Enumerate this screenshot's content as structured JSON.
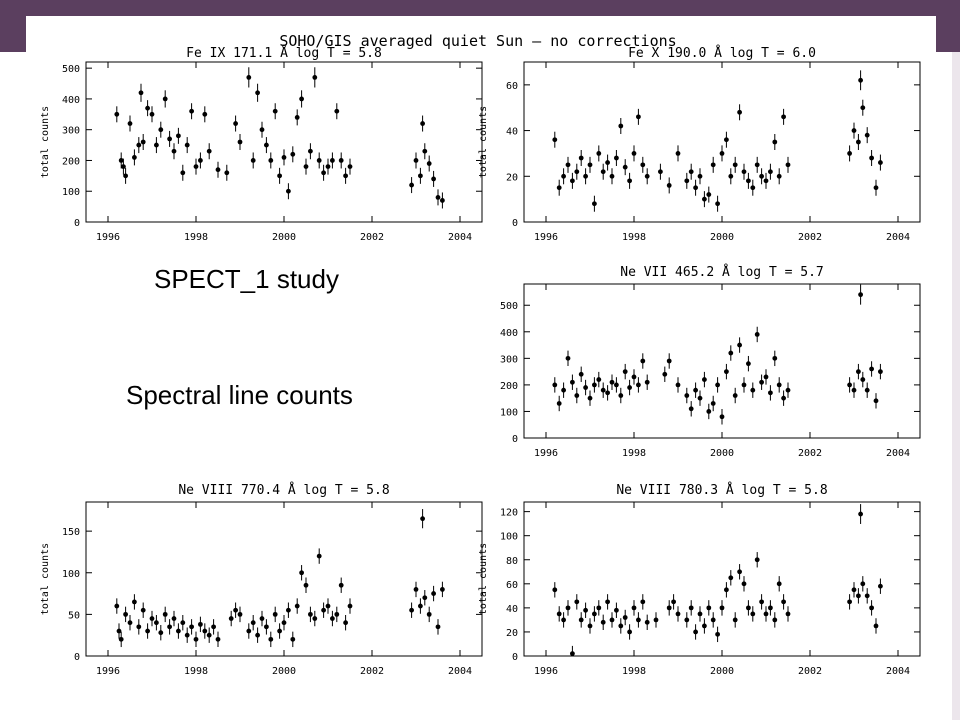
{
  "slide": {
    "header_color": "#5b3f5f",
    "main_title": "SOHO/GIS averaged quiet Sun – no corrections",
    "caption_study": "SPECT_1 study",
    "caption_counts": "Spectral line counts"
  },
  "chart_data": [
    {
      "type": "scatter",
      "title": "Fe IX 171.1 Å log T = 5.8",
      "ylabel": "total counts",
      "xlabel": "",
      "xlim": [
        1995.5,
        2004.5
      ],
      "ylim": [
        0,
        520
      ],
      "xticks": [
        1996,
        1998,
        2000,
        2002,
        2004
      ],
      "yticks": [
        0,
        100,
        200,
        300,
        400,
        500
      ],
      "error_bars": true,
      "x": [
        1996.2,
        1996.3,
        1996.35,
        1996.4,
        1996.5,
        1996.6,
        1996.7,
        1996.75,
        1996.8,
        1996.9,
        1997.0,
        1997.1,
        1997.2,
        1997.3,
        1997.4,
        1997.5,
        1997.6,
        1997.7,
        1997.8,
        1997.9,
        1998.0,
        1998.1,
        1998.2,
        1998.3,
        1998.5,
        1998.7,
        1998.9,
        1999.0,
        1999.2,
        1999.3,
        1999.4,
        1999.5,
        1999.6,
        1999.7,
        1999.8,
        1999.9,
        2000.0,
        2000.1,
        2000.2,
        2000.3,
        2000.4,
        2000.5,
        2000.6,
        2000.7,
        2000.8,
        2000.9,
        2001.0,
        2001.1,
        2001.2,
        2001.3,
        2001.4,
        2001.5,
        2002.9,
        2003.0,
        2003.1,
        2003.15,
        2003.2,
        2003.3,
        2003.4,
        2003.5,
        2003.6
      ],
      "y": [
        350,
        200,
        180,
        150,
        320,
        210,
        250,
        420,
        260,
        370,
        350,
        250,
        300,
        400,
        270,
        230,
        280,
        160,
        250,
        360,
        180,
        200,
        350,
        230,
        170,
        160,
        320,
        260,
        470,
        200,
        420,
        300,
        250,
        200,
        360,
        150,
        210,
        100,
        220,
        340,
        400,
        180,
        230,
        470,
        200,
        160,
        180,
        200,
        360,
        200,
        150,
        180,
        120,
        200,
        150,
        320,
        230,
        190,
        140,
        80,
        70
      ]
    },
    {
      "type": "scatter",
      "title": "Fe X 190.0 Å log T = 6.0",
      "ylabel": "total counts",
      "xlabel": "",
      "xlim": [
        1995.5,
        2004.5
      ],
      "ylim": [
        0,
        70
      ],
      "xticks": [
        1996,
        1998,
        2000,
        2002,
        2004
      ],
      "yticks": [
        0,
        20,
        40,
        60
      ],
      "error_bars": true,
      "x": [
        1996.2,
        1996.3,
        1996.4,
        1996.5,
        1996.6,
        1996.7,
        1996.8,
        1996.9,
        1997.0,
        1997.1,
        1997.2,
        1997.3,
        1997.4,
        1997.5,
        1997.6,
        1997.7,
        1997.8,
        1997.9,
        1998.0,
        1998.1,
        1998.2,
        1998.3,
        1998.6,
        1998.8,
        1999.0,
        1999.2,
        1999.3,
        1999.4,
        1999.5,
        1999.6,
        1999.7,
        1999.8,
        1999.9,
        2000.0,
        2000.1,
        2000.2,
        2000.3,
        2000.4,
        2000.5,
        2000.6,
        2000.7,
        2000.8,
        2000.9,
        2001.0,
        2001.1,
        2001.2,
        2001.3,
        2001.4,
        2001.5,
        2002.9,
        2003.0,
        2003.1,
        2003.15,
        2003.2,
        2003.3,
        2003.4,
        2003.5,
        2003.6
      ],
      "y": [
        36,
        15,
        20,
        25,
        18,
        22,
        28,
        20,
        25,
        8,
        30,
        22,
        26,
        20,
        28,
        42,
        24,
        18,
        30,
        46,
        25,
        20,
        22,
        16,
        30,
        18,
        22,
        15,
        20,
        10,
        12,
        25,
        8,
        30,
        36,
        20,
        25,
        48,
        22,
        18,
        15,
        25,
        20,
        18,
        22,
        35,
        20,
        46,
        25,
        30,
        40,
        35,
        62,
        50,
        38,
        28,
        15,
        26
      ]
    },
    {
      "type": "scatter",
      "title": "Ne VII 465.2 Å log T = 5.7",
      "ylabel": "",
      "xlabel": "",
      "xlim": [
        1995.5,
        2004.5
      ],
      "ylim": [
        0,
        580
      ],
      "xticks": [
        1996,
        1998,
        2000,
        2002,
        2004
      ],
      "yticks": [
        0,
        100,
        200,
        300,
        400,
        500
      ],
      "error_bars": true,
      "x": [
        1996.2,
        1996.3,
        1996.4,
        1996.5,
        1996.6,
        1996.7,
        1996.8,
        1996.9,
        1997.0,
        1997.1,
        1997.2,
        1997.3,
        1997.4,
        1997.5,
        1997.6,
        1997.7,
        1997.8,
        1997.9,
        1998.0,
        1998.1,
        1998.2,
        1998.3,
        1998.7,
        1998.8,
        1999.0,
        1999.2,
        1999.3,
        1999.4,
        1999.5,
        1999.6,
        1999.7,
        1999.8,
        1999.9,
        2000.0,
        2000.1,
        2000.2,
        2000.3,
        2000.4,
        2000.5,
        2000.6,
        2000.7,
        2000.8,
        2000.9,
        2001.0,
        2001.1,
        2001.2,
        2001.3,
        2001.4,
        2001.5,
        2002.9,
        2003.0,
        2003.1,
        2003.15,
        2003.2,
        2003.3,
        2003.4,
        2003.5,
        2003.6
      ],
      "y": [
        200,
        130,
        180,
        300,
        210,
        160,
        240,
        190,
        150,
        200,
        220,
        180,
        170,
        210,
        200,
        160,
        250,
        190,
        230,
        200,
        290,
        210,
        240,
        290,
        200,
        160,
        110,
        180,
        150,
        220,
        100,
        130,
        200,
        80,
        250,
        320,
        160,
        350,
        200,
        280,
        180,
        390,
        210,
        230,
        170,
        300,
        200,
        150,
        180,
        200,
        180,
        250,
        540,
        220,
        180,
        260,
        140,
        250
      ]
    },
    {
      "type": "scatter",
      "title": "Ne VIII 770.4 Å log T = 5.8",
      "ylabel": "total counts",
      "xlabel": "",
      "xlim": [
        1995.5,
        2004.5
      ],
      "ylim": [
        0,
        185
      ],
      "xticks": [
        1996,
        1998,
        2000,
        2002,
        2004
      ],
      "yticks": [
        0,
        50,
        100,
        150
      ],
      "error_bars": true,
      "x": [
        1996.2,
        1996.25,
        1996.3,
        1996.4,
        1996.5,
        1996.6,
        1996.7,
        1996.8,
        1996.9,
        1997.0,
        1997.1,
        1997.2,
        1997.3,
        1997.4,
        1997.5,
        1997.6,
        1997.7,
        1997.8,
        1997.9,
        1998.0,
        1998.1,
        1998.2,
        1998.3,
        1998.4,
        1998.5,
        1998.8,
        1998.9,
        1999.0,
        1999.2,
        1999.3,
        1999.4,
        1999.5,
        1999.6,
        1999.7,
        1999.8,
        1999.9,
        2000.0,
        2000.1,
        2000.2,
        2000.3,
        2000.4,
        2000.5,
        2000.6,
        2000.7,
        2000.8,
        2000.9,
        2001.0,
        2001.1,
        2001.2,
        2001.3,
        2001.4,
        2001.5,
        2002.9,
        2003.0,
        2003.1,
        2003.15,
        2003.2,
        2003.3,
        2003.4,
        2003.5,
        2003.6
      ],
      "y": [
        60,
        30,
        20,
        50,
        40,
        65,
        35,
        55,
        30,
        45,
        40,
        28,
        50,
        35,
        45,
        30,
        40,
        25,
        35,
        20,
        38,
        30,
        25,
        35,
        20,
        45,
        55,
        50,
        30,
        40,
        25,
        45,
        35,
        20,
        50,
        30,
        40,
        55,
        20,
        60,
        100,
        85,
        50,
        45,
        120,
        55,
        60,
        45,
        50,
        85,
        40,
        60,
        55,
        80,
        60,
        165,
        70,
        50,
        75,
        35,
        80
      ]
    },
    {
      "type": "scatter",
      "title": "Ne VIII 780.3 Å log T = 5.8",
      "ylabel": "total counts",
      "xlabel": "",
      "xlim": [
        1995.5,
        2004.5
      ],
      "ylim": [
        0,
        128
      ],
      "xticks": [
        1996,
        1998,
        2000,
        2002,
        2004
      ],
      "yticks": [
        0,
        20,
        40,
        60,
        80,
        100,
        120
      ],
      "error_bars": true,
      "x": [
        1996.2,
        1996.3,
        1996.4,
        1996.5,
        1996.6,
        1996.7,
        1996.8,
        1996.9,
        1997.0,
        1997.1,
        1997.2,
        1997.3,
        1997.4,
        1997.5,
        1997.6,
        1997.7,
        1997.8,
        1997.9,
        1998.0,
        1998.1,
        1998.2,
        1998.3,
        1998.5,
        1998.8,
        1998.9,
        1999.0,
        1999.2,
        1999.3,
        1999.4,
        1999.5,
        1999.6,
        1999.7,
        1999.8,
        1999.9,
        2000.0,
        2000.1,
        2000.2,
        2000.3,
        2000.4,
        2000.5,
        2000.6,
        2000.7,
        2000.8,
        2000.9,
        2001.0,
        2001.1,
        2001.2,
        2001.3,
        2001.4,
        2001.5,
        2002.9,
        2003.0,
        2003.1,
        2003.15,
        2003.2,
        2003.3,
        2003.4,
        2003.5,
        2003.6
      ],
      "y": [
        55,
        35,
        30,
        40,
        2,
        45,
        30,
        38,
        25,
        35,
        40,
        28,
        45,
        30,
        38,
        25,
        32,
        20,
        40,
        30,
        45,
        28,
        30,
        40,
        45,
        35,
        30,
        40,
        20,
        35,
        25,
        40,
        30,
        18,
        40,
        55,
        65,
        30,
        70,
        60,
        40,
        35,
        80,
        45,
        35,
        40,
        30,
        60,
        45,
        35,
        45,
        55,
        50,
        118,
        60,
        50,
        40,
        25,
        58
      ]
    }
  ]
}
